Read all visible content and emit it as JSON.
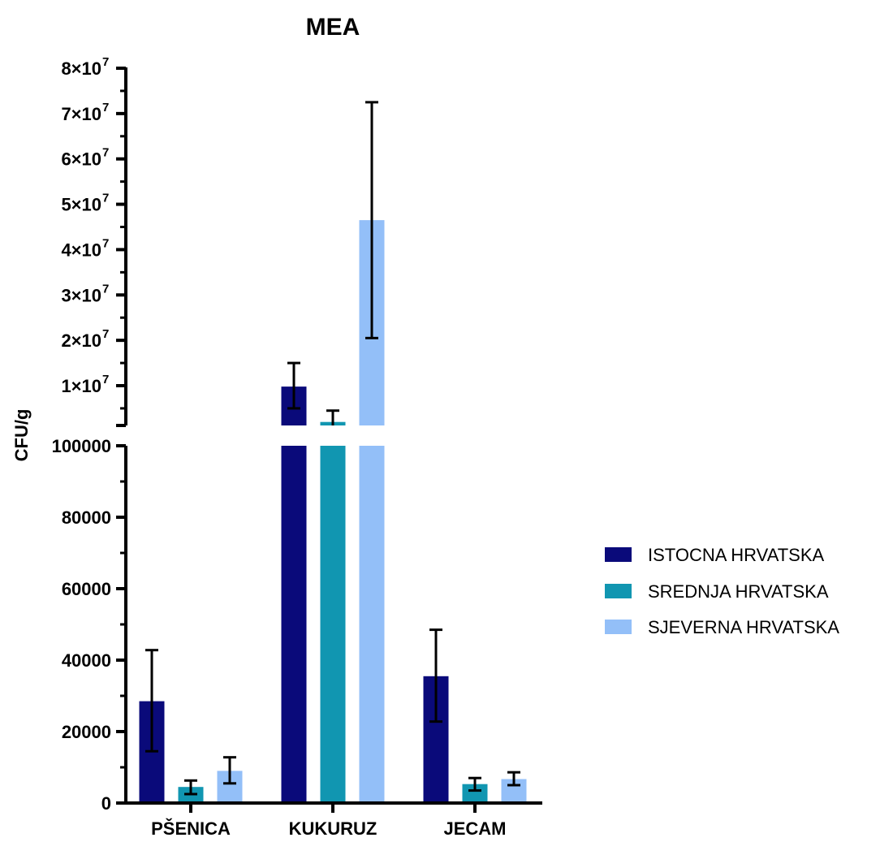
{
  "chart_data": {
    "type": "bar",
    "title": "MEA",
    "xlabel": "",
    "ylabel": "CFU/g",
    "categories": [
      "PŠENICA",
      "KUKURUZ",
      "JECAM"
    ],
    "series": [
      {
        "name": "ISTOCNA HRVATSKA",
        "color": "#0a0a7a",
        "values": [
          28500,
          9800000,
          35500
        ],
        "error_low": [
          14500,
          5000000,
          22800
        ],
        "error_high": [
          42800,
          15000000,
          48500
        ]
      },
      {
        "name": "SREDNJA HRVATSKA",
        "color": "#1196b1",
        "values": [
          4500,
          2000000,
          5300
        ],
        "error_low": [
          2500,
          -1000000,
          3500
        ],
        "error_high": [
          6300,
          4500000,
          7000
        ]
      },
      {
        "name": "SJEVERNA HRVATSKA",
        "color": "#93bff8",
        "values": [
          9000,
          46500000,
          6700
        ],
        "error_low": [
          5500,
          20500000,
          5000
        ],
        "error_high": [
          12800,
          72500000,
          8600
        ]
      }
    ],
    "y_axis": {
      "broken": true,
      "lower_segment": {
        "range": [
          0,
          100000
        ],
        "ticks": [
          0,
          20000,
          40000,
          60000,
          80000,
          100000
        ],
        "tick_labels": [
          "0",
          "20000",
          "40000",
          "60000",
          "80000",
          "100000"
        ]
      },
      "upper_segment": {
        "range": [
          1000000,
          80000000
        ],
        "ticks": [
          10000000,
          20000000,
          30000000,
          40000000,
          50000000,
          60000000,
          70000000,
          80000000
        ],
        "tick_labels": [
          "1×10",
          "2×10",
          "3×10",
          "4×10",
          "5×10",
          "6×10",
          "7×10",
          "8×10"
        ],
        "exponent": "7"
      }
    },
    "grid": false,
    "legend_position": "right"
  }
}
